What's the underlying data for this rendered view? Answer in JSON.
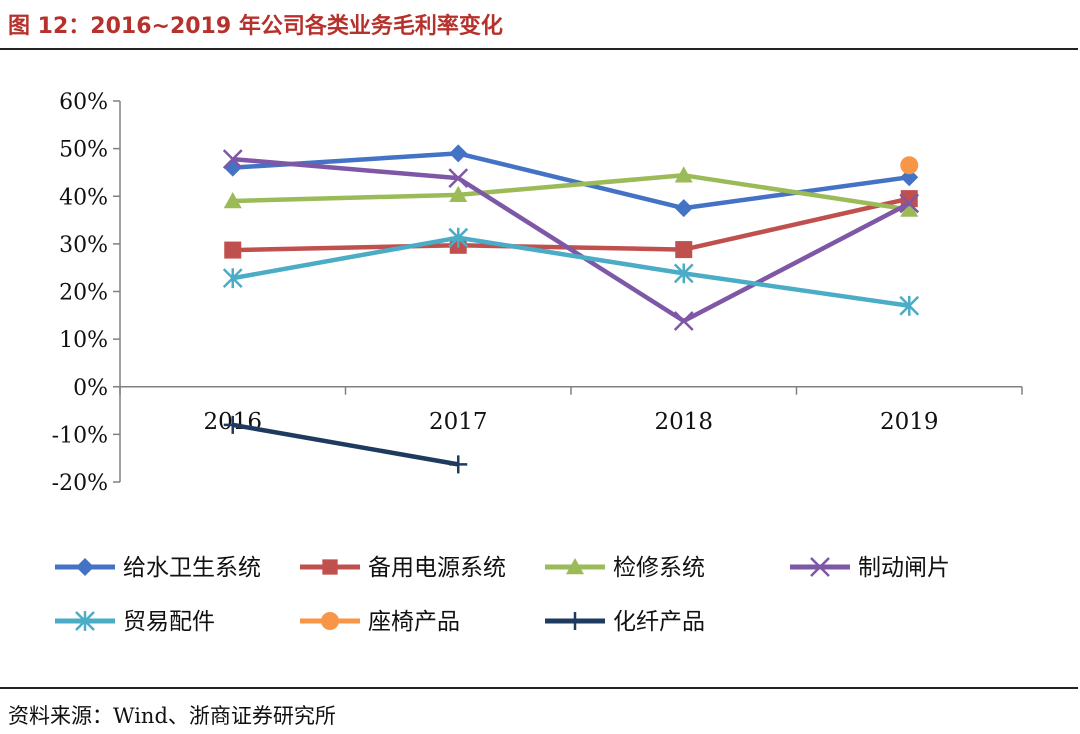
{
  "title": "图 12：2016~2019 年公司各类业务毛利率变化",
  "source": "资料来源：Wind、浙商证券研究所",
  "chart_data": {
    "type": "line",
    "categories": [
      "2016",
      "2017",
      "2018",
      "2019"
    ],
    "ylim": [
      -0.2,
      0.6
    ],
    "yticks": [
      -0.2,
      -0.1,
      0,
      0.1,
      0.2,
      0.3,
      0.4,
      0.5,
      0.6
    ],
    "ytick_labels": [
      "-20%",
      "-10%",
      "0%",
      "10%",
      "20%",
      "30%",
      "40%",
      "50%",
      "60%"
    ],
    "grid": false,
    "legend_position": "bottom",
    "series": [
      {
        "name": "给水卫生系统",
        "color": "#4472c4",
        "marker": "diamond",
        "values": [
          0.46,
          0.49,
          0.375,
          0.44
        ]
      },
      {
        "name": "备用电源系统",
        "color": "#c0504d",
        "marker": "square",
        "values": [
          0.287,
          0.297,
          0.288,
          0.395
        ]
      },
      {
        "name": "检修系统",
        "color": "#9bbb59",
        "marker": "triangle",
        "values": [
          0.39,
          0.403,
          0.444,
          0.372
        ]
      },
      {
        "name": "制动闸片",
        "color": "#7e57a6",
        "marker": "x",
        "values": [
          0.478,
          0.438,
          0.138,
          0.385
        ]
      },
      {
        "name": "贸易配件",
        "color": "#4bacc6",
        "marker": "star",
        "values": [
          0.228,
          0.313,
          0.238,
          0.17
        ]
      },
      {
        "name": "座椅产品",
        "color": "#f79646",
        "marker": "circle",
        "values": [
          null,
          null,
          null,
          0.465
        ]
      },
      {
        "name": "化纤产品",
        "color": "#1f3a5f",
        "marker": "plus",
        "values": [
          -0.08,
          -0.163,
          null,
          null
        ]
      }
    ]
  }
}
